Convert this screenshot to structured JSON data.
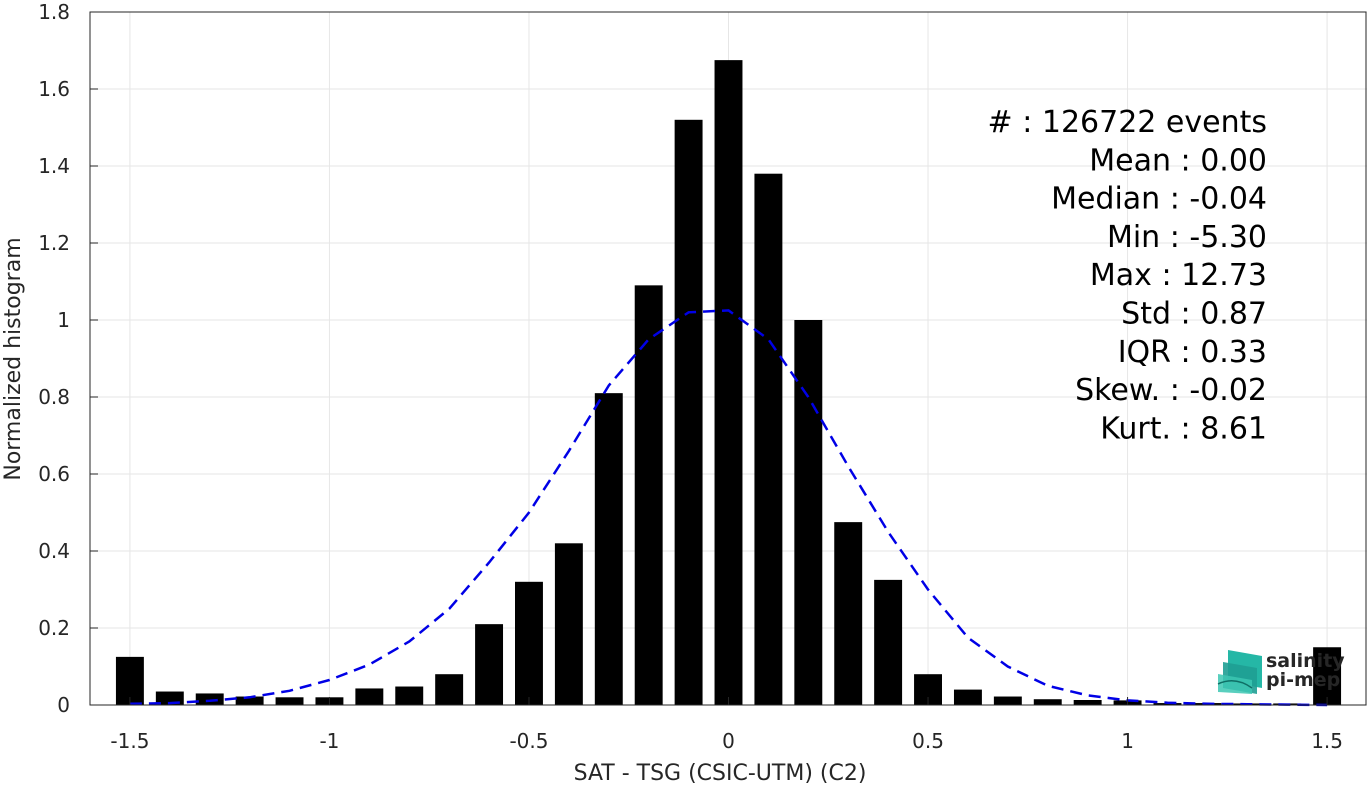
{
  "chart_data": {
    "type": "bar",
    "xlabel": "SAT - TSG (CSIC-UTM) (C2)",
    "ylabel": "Normalized histogram",
    "xlim": [
      -1.6,
      1.6
    ],
    "ylim": [
      0,
      1.8
    ],
    "xticks": [
      -1.5,
      -1,
      -0.5,
      0,
      0.5,
      1,
      1.5
    ],
    "xtick_labels": [
      "-1.5",
      "-1",
      "-0.5",
      "0",
      "0.5",
      "1",
      "1.5"
    ],
    "yticks": [
      0,
      0.2,
      0.4,
      0.6,
      0.8,
      1,
      1.2,
      1.4,
      1.6,
      1.8
    ],
    "ytick_labels": [
      "0",
      "0.2",
      "0.4",
      "0.6",
      "0.8",
      "1",
      "1.2",
      "1.4",
      "1.6",
      "1.8"
    ],
    "grid": true,
    "bar_color": "#000000",
    "bar_width": 0.07,
    "x": [
      -1.5,
      -1.4,
      -1.3,
      -1.2,
      -1.1,
      -1.0,
      -0.9,
      -0.8,
      -0.7,
      -0.6,
      -0.5,
      -0.4,
      -0.3,
      -0.2,
      -0.1,
      0.0,
      0.1,
      0.2,
      0.3,
      0.4,
      0.5,
      0.6,
      0.7,
      0.8,
      0.9,
      1.0,
      1.1,
      1.2,
      1.3,
      1.4,
      1.5
    ],
    "values": [
      0.125,
      0.035,
      0.03,
      0.022,
      0.02,
      0.02,
      0.043,
      0.048,
      0.08,
      0.21,
      0.32,
      0.42,
      0.81,
      1.09,
      1.52,
      1.675,
      1.38,
      1.0,
      0.475,
      0.325,
      0.08,
      0.04,
      0.022,
      0.015,
      0.013,
      0.012,
      0.005,
      0.005,
      0.004,
      0.004,
      0.15
    ],
    "fit_curve": {
      "style": "dashed",
      "color": "#0000e6",
      "x": [
        -1.5,
        -1.4,
        -1.3,
        -1.2,
        -1.1,
        -1.0,
        -0.9,
        -0.8,
        -0.7,
        -0.6,
        -0.5,
        -0.4,
        -0.3,
        -0.2,
        -0.1,
        0.0,
        0.1,
        0.2,
        0.3,
        0.4,
        0.5,
        0.6,
        0.7,
        0.8,
        0.9,
        1.0,
        1.1,
        1.2,
        1.3,
        1.4,
        1.5
      ],
      "y": [
        0.003,
        0.005,
        0.011,
        0.02,
        0.037,
        0.065,
        0.105,
        0.165,
        0.25,
        0.37,
        0.5,
        0.66,
        0.83,
        0.95,
        1.02,
        1.025,
        0.95,
        0.8,
        0.62,
        0.45,
        0.3,
        0.175,
        0.1,
        0.05,
        0.025,
        0.012,
        0.006,
        0.003,
        0.002,
        0.001,
        0.0
      ]
    },
    "annotations": [
      {
        "label": "#",
        "value": ": 126722 events"
      },
      {
        "label": "Mean",
        "value": ": 0.00"
      },
      {
        "label": "Median",
        "value": ": -0.04"
      },
      {
        "label": "Min",
        "value": ": -5.30"
      },
      {
        "label": "Max",
        "value": ": 12.73"
      },
      {
        "label": "Std",
        "value": ": 0.87"
      },
      {
        "label": "IQR",
        "value": ": 0.33"
      },
      {
        "label": "Skew.",
        "value": ": -0.02"
      },
      {
        "label": "Kurt.",
        "value": ": 8.61"
      }
    ]
  },
  "logo": {
    "line1": "salinity",
    "line2": "pi-mep",
    "color1": "#1aa59a",
    "color2": "#137a72"
  }
}
